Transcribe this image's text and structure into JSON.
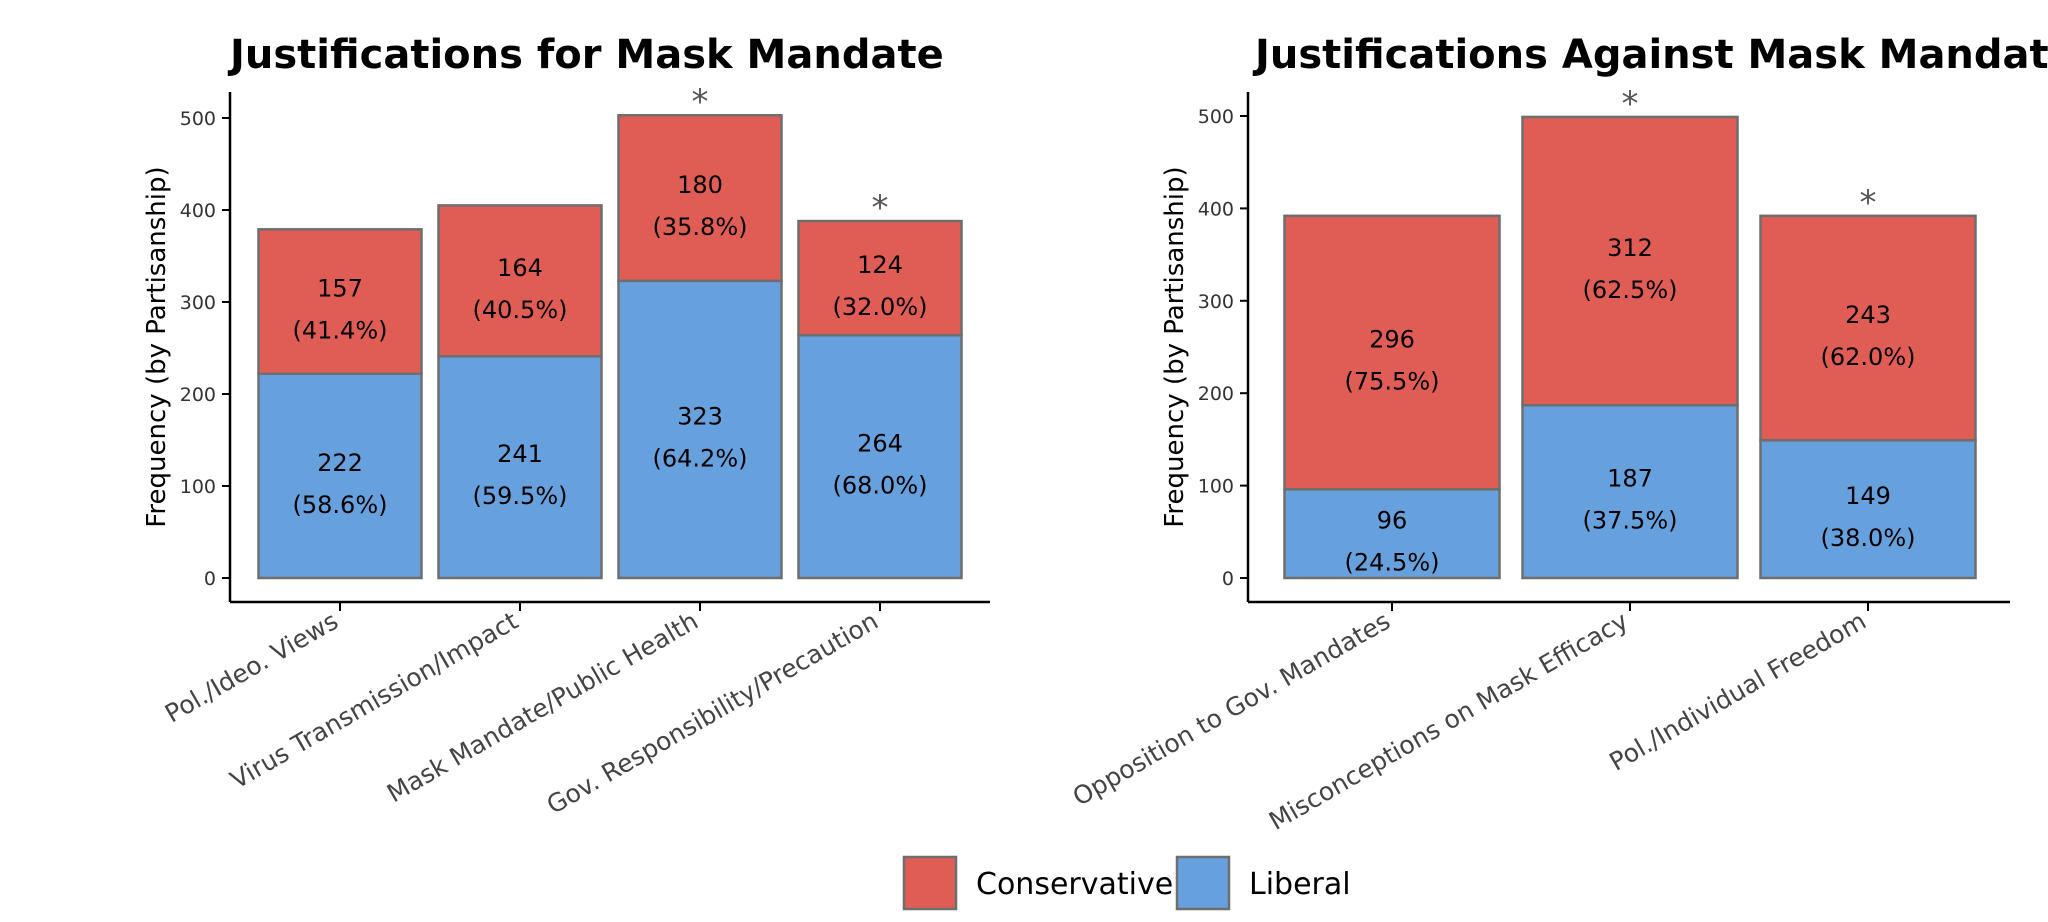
{
  "legend": {
    "position": "bottom-center",
    "entries": [
      {
        "name": "Conservative",
        "color": "#e05d56"
      },
      {
        "name": "Liberal",
        "color": "#66a1de"
      }
    ]
  },
  "chart_data": [
    {
      "type": "bar",
      "stacked": true,
      "title": "Justifications for Mask Mandate",
      "xlabel": "",
      "ylabel": "Frequency (by Partisanship)",
      "ylim": [
        0,
        525
      ],
      "yticks": [
        0,
        100,
        200,
        300,
        400,
        500
      ],
      "grid": false,
      "categories": [
        "Pol./Ideo. Views",
        "Virus Transmission/Impact",
        "Mask Mandate/Public Health",
        "Gov. Responsibility/Precaution"
      ],
      "series": [
        {
          "name": "Liberal",
          "color": "#66a1de",
          "values": [
            222,
            241,
            323,
            264
          ],
          "labels": [
            "(58.6%)",
            "(59.5%)",
            "(64.2%)",
            "(68.0%)"
          ]
        },
        {
          "name": "Conservative",
          "color": "#e05d56",
          "values": [
            157,
            164,
            180,
            124
          ],
          "labels": [
            "(41.4%)",
            "(40.5%)",
            "(35.8%)",
            "(32.0%)"
          ]
        }
      ],
      "annotations": [
        "",
        "",
        "*",
        "*"
      ]
    },
    {
      "type": "bar",
      "stacked": true,
      "title": "Justifications Against Mask Mandate",
      "xlabel": "",
      "ylabel": "Frequency (by Partisanship)",
      "ylim": [
        0,
        525
      ],
      "yticks": [
        0,
        100,
        200,
        300,
        400,
        500
      ],
      "grid": false,
      "categories": [
        "Opposition to Gov. Mandates",
        "Misconceptions on Mask Efficacy",
        "Pol./Individual Freedom"
      ],
      "series": [
        {
          "name": "Liberal",
          "color": "#66a1de",
          "values": [
            96,
            187,
            149
          ],
          "labels": [
            "(24.5%)",
            "(37.5%)",
            "(38.0%)"
          ]
        },
        {
          "name": "Conservative",
          "color": "#e05d56",
          "values": [
            296,
            312,
            243
          ],
          "labels": [
            "(75.5%)",
            "(62.5%)",
            "(62.0%)"
          ]
        }
      ],
      "annotations": [
        "",
        "*",
        "*"
      ]
    }
  ]
}
